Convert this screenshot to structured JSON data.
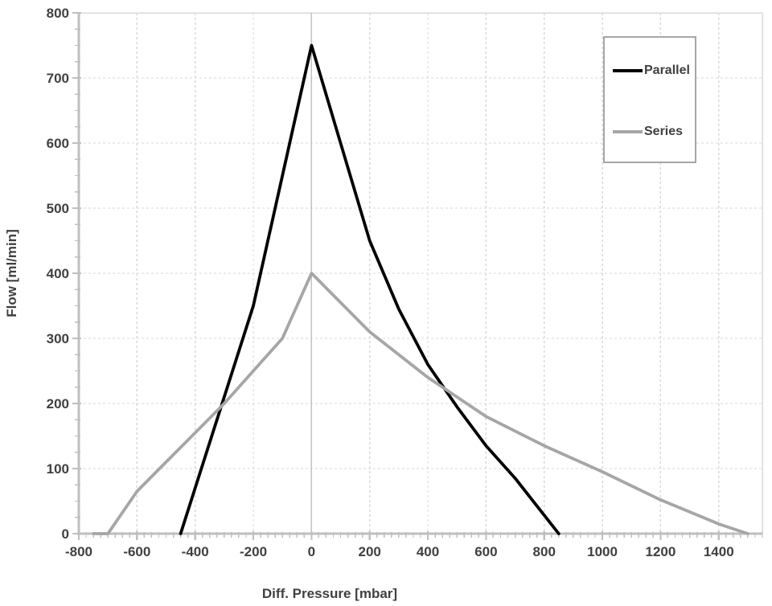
{
  "chart_data": {
    "type": "line",
    "title": "",
    "xlabel": "Diff. Pressure [mbar]",
    "ylabel": "Flow [ml/min]",
    "xlim": [
      -800,
      1550
    ],
    "ylim": [
      0,
      800
    ],
    "x_ticks": [
      -800,
      -600,
      -400,
      -200,
      0,
      200,
      400,
      600,
      800,
      1000,
      1200,
      1400
    ],
    "y_ticks": [
      0,
      100,
      200,
      300,
      400,
      500,
      600,
      700,
      800
    ],
    "minor_tick_step_x": 25,
    "minor_tick_step_y": 25,
    "grid": "dashed",
    "zero_line_x": 0,
    "legend_position": "top-right",
    "series": [
      {
        "name": "Parallel",
        "color": "#000000",
        "points": [
          [
            -450,
            0
          ],
          [
            -200,
            350
          ],
          [
            0,
            750
          ],
          [
            100,
            600
          ],
          [
            200,
            450
          ],
          [
            300,
            345
          ],
          [
            400,
            260
          ],
          [
            500,
            195
          ],
          [
            600,
            135
          ],
          [
            700,
            85
          ],
          [
            850,
            0
          ]
        ]
      },
      {
        "name": "Series",
        "color": "#a6a6a6",
        "points": [
          [
            -750,
            0
          ],
          [
            -700,
            0
          ],
          [
            -600,
            65
          ],
          [
            -500,
            110
          ],
          [
            -400,
            155
          ],
          [
            -300,
            200
          ],
          [
            -200,
            250
          ],
          [
            -100,
            300
          ],
          [
            0,
            400
          ],
          [
            200,
            310
          ],
          [
            400,
            240
          ],
          [
            600,
            180
          ],
          [
            800,
            135
          ],
          [
            1000,
            95
          ],
          [
            1200,
            52
          ],
          [
            1400,
            15
          ],
          [
            1500,
            0
          ]
        ]
      }
    ],
    "colors": {
      "axis": "#bfbfbf",
      "grid": "#d9d9d9",
      "border": "#d9d9d9",
      "zero_line": "#c3c3c3",
      "text": "#404040"
    }
  }
}
